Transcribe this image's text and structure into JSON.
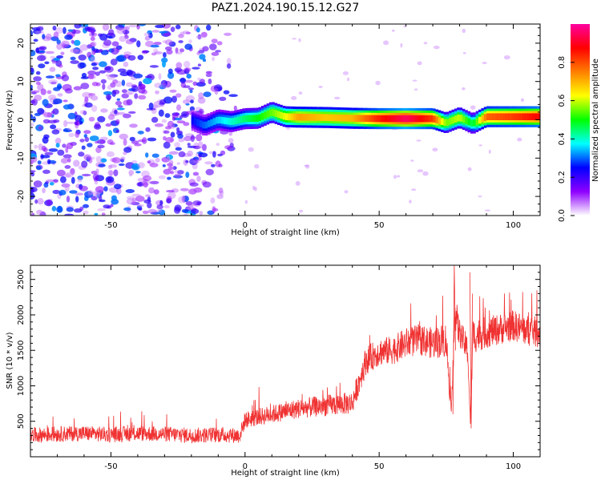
{
  "title": "PAZ1.2024.190.15.12.G27",
  "chart_data": [
    {
      "type": "heatmap",
      "xlabel": "Height of straight line (km)",
      "ylabel": "Frequency (Hz)",
      "xlim": [
        -80,
        110
      ],
      "ylim": [
        -25,
        25
      ],
      "x_ticks": [
        -50,
        0,
        50,
        100
      ],
      "y_ticks": [
        -20,
        -10,
        0,
        10,
        20
      ],
      "colorbar": {
        "label": "Normalized spectral amplitude",
        "range": [
          0.0,
          1.0
        ],
        "ticks": [
          0.0,
          0.2,
          0.4,
          0.6,
          0.8
        ],
        "colormap": [
          "#ffffff",
          "#8f00ff",
          "#0000ff",
          "#00ffff",
          "#00ff00",
          "#ffff00",
          "#ff7f00",
          "#ff0000",
          "#ff00a0"
        ]
      },
      "ridge": {
        "x": [
          -20,
          -15,
          -10,
          -5,
          0,
          5,
          10,
          15,
          20,
          30,
          40,
          50,
          60,
          70,
          75,
          80,
          85,
          90,
          100,
          110
        ],
        "freq": [
          0.0,
          -1.5,
          0.0,
          -0.5,
          0.3,
          0.4,
          2.0,
          0.8,
          0.7,
          0.6,
          0.4,
          0.3,
          0.3,
          0.3,
          -0.8,
          0.6,
          -1.0,
          0.8,
          0.8,
          0.8
        ],
        "amplitude": [
          0.25,
          0.3,
          0.35,
          0.4,
          0.45,
          0.5,
          0.55,
          0.62,
          0.72,
          0.68,
          0.7,
          0.85,
          0.95,
          0.82,
          0.55,
          0.6,
          0.45,
          0.78,
          0.82,
          0.88
        ]
      },
      "noise_region": {
        "x_range": [
          -80,
          -5
        ],
        "freq_range": [
          -25,
          25
        ],
        "amplitude_range": [
          0.05,
          0.3
        ]
      }
    },
    {
      "type": "line",
      "xlabel": "Height of straight line (km)",
      "ylabel": "SNR (10 * v/v)",
      "xlim": [
        -80,
        110
      ],
      "ylim": [
        0,
        2700
      ],
      "x_ticks": [
        -50,
        0,
        50,
        100
      ],
      "y_ticks": [
        500,
        1000,
        1500,
        2000,
        2500
      ],
      "color": "#f03232",
      "series": [
        {
          "x": [
            -80,
            -70,
            -60,
            -50,
            -40,
            -30,
            -20,
            -10,
            -2,
            0,
            10,
            20,
            30,
            40,
            42,
            45,
            50,
            55,
            60,
            65,
            70,
            75,
            77,
            78,
            80,
            83,
            84,
            85,
            90,
            95,
            100,
            105,
            110
          ],
          "values": [
            300,
            320,
            330,
            310,
            330,
            320,
            300,
            310,
            300,
            520,
            600,
            680,
            720,
            760,
            1000,
            1350,
            1480,
            1500,
            1600,
            1650,
            1600,
            1650,
            550,
            2000,
            1750,
            1500,
            500,
            1700,
            1750,
            1800,
            1850,
            1780,
            1750
          ],
          "noise_amplitude": [
            110,
            110,
            110,
            110,
            110,
            110,
            110,
            110,
            110,
            120,
            130,
            140,
            150,
            160,
            180,
            200,
            200,
            200,
            220,
            220,
            220,
            250,
            100,
            350,
            200,
            200,
            100,
            250,
            220,
            220,
            220,
            220,
            220
          ]
        }
      ]
    }
  ]
}
